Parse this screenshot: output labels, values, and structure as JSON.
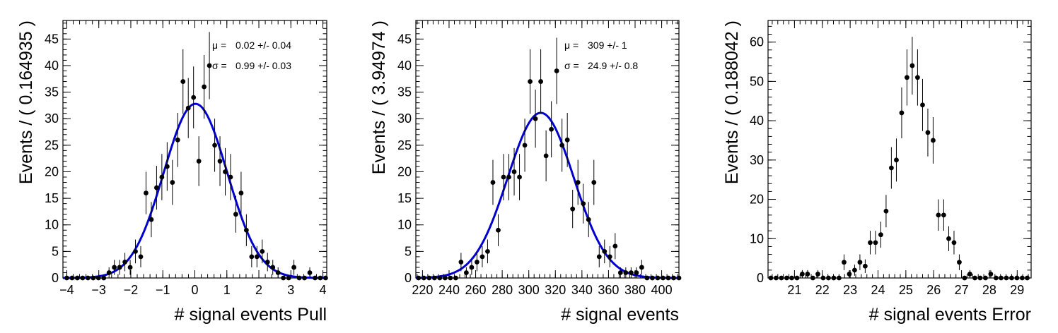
{
  "chart_data": [
    {
      "type": "scatter",
      "xlabel": "# signal events Pull",
      "ylabel": "Events / ( 0.164935 )",
      "xlim": [
        -4.12,
        4.12
      ],
      "ylim": [
        0,
        48.5
      ],
      "xticks": [
        -4,
        -3,
        -2,
        -1,
        0,
        1,
        2,
        3,
        4
      ],
      "xtick_labels": [
        "−4",
        "−3",
        "−2",
        "−1",
        "0",
        "1",
        "2",
        "3",
        "4"
      ],
      "yticks": [
        0,
        5,
        10,
        15,
        20,
        25,
        30,
        35,
        40,
        45
      ],
      "ytick_labels": [
        "0",
        "5",
        "10",
        "15",
        "20",
        "25",
        "30",
        "35",
        "40",
        "45"
      ],
      "stats": [
        {
          "symbol": "μ =",
          "text": "0.02 +/- 0.04"
        },
        {
          "symbol": "σ =",
          "text": "0.99 +/- 0.03"
        }
      ],
      "fit": {
        "type": "gaussian",
        "mean": 0.02,
        "sigma": 0.99,
        "amplitude": 32.8,
        "color": "#0000cc"
      },
      "points": {
        "x": [
          -4.0,
          -3.835,
          -3.67,
          -3.505,
          -3.34,
          -3.175,
          -3.01,
          -2.845,
          -2.68,
          -2.515,
          -2.35,
          -2.185,
          -2.02,
          -1.855,
          -1.69,
          -1.525,
          -1.36,
          -1.195,
          -1.03,
          -0.865,
          -0.7,
          -0.535,
          -0.37,
          -0.205,
          -0.04,
          0.125,
          0.29,
          0.455,
          0.62,
          0.785,
          0.95,
          1.115,
          1.28,
          1.445,
          1.61,
          1.775,
          1.94,
          2.105,
          2.27,
          2.435,
          2.6,
          2.765,
          2.93,
          3.095,
          3.26,
          3.425,
          3.59,
          3.755,
          3.92,
          4.085
        ],
        "y": [
          0,
          0,
          0,
          0,
          0,
          0,
          0,
          0,
          1,
          2,
          2,
          3,
          2,
          5,
          4,
          16,
          11,
          17,
          19,
          21,
          18,
          26,
          37,
          32,
          34,
          22,
          36,
          40,
          25,
          22,
          20,
          19,
          12,
          16,
          9,
          4,
          4,
          5,
          3,
          2,
          1,
          0,
          0,
          2,
          0,
          0,
          1,
          0,
          0,
          0
        ]
      }
    },
    {
      "type": "scatter",
      "xlabel": "# signal events",
      "ylabel": "Events / ( 3.94974 )",
      "xlim": [
        215,
        413
      ],
      "ylim": [
        0,
        48.5
      ],
      "xticks": [
        220,
        240,
        260,
        280,
        300,
        320,
        340,
        360,
        380,
        400
      ],
      "xtick_labels": [
        "220",
        "240",
        "260",
        "280",
        "300",
        "320",
        "340",
        "360",
        "380",
        "400"
      ],
      "yticks": [
        0,
        5,
        10,
        15,
        20,
        25,
        30,
        35,
        40,
        45
      ],
      "ytick_labels": [
        "0",
        "5",
        "10",
        "15",
        "20",
        "25",
        "30",
        "35",
        "40",
        "45"
      ],
      "stats": [
        {
          "symbol": "μ =",
          "text": "309 +/- 1"
        },
        {
          "symbol": "σ =",
          "text": "24.9 +/- 0.8"
        }
      ],
      "fit": {
        "type": "gaussian",
        "mean": 309,
        "sigma": 24.9,
        "amplitude": 31.1,
        "color": "#0000cc"
      },
      "points": {
        "x": [
          217,
          221,
          225,
          229,
          233,
          237,
          241,
          245,
          249,
          253,
          257,
          261,
          265,
          269,
          273,
          277,
          281,
          285,
          289,
          293,
          297,
          301,
          305,
          309,
          313,
          317,
          321,
          325,
          329,
          333,
          337,
          341,
          345,
          349,
          353,
          357,
          361,
          365,
          369,
          373,
          377,
          381,
          385,
          389,
          393,
          397,
          401,
          405,
          409,
          413
        ],
        "y": [
          0,
          0,
          0,
          0,
          0,
          0,
          0,
          0,
          3,
          1,
          2,
          3,
          4,
          5,
          18,
          9,
          19,
          19,
          20,
          19,
          25,
          37,
          30,
          37,
          23,
          28,
          39,
          25,
          26,
          13,
          18,
          14,
          11,
          18,
          4,
          5,
          4,
          6,
          1,
          1,
          1,
          1,
          2,
          0,
          0,
          0,
          0,
          0,
          0,
          0
        ]
      }
    },
    {
      "type": "scatter",
      "xlabel": "# signal events Error",
      "ylabel": "Events / ( 0.188042 )",
      "xlim": [
        20.05,
        29.5
      ],
      "ylim": [
        0,
        65.5
      ],
      "xticks": [
        21,
        22,
        23,
        24,
        25,
        26,
        27,
        28,
        29
      ],
      "xtick_labels": [
        "21",
        "22",
        "23",
        "24",
        "25",
        "26",
        "27",
        "28",
        "29"
      ],
      "yticks": [
        0,
        10,
        20,
        30,
        40,
        50,
        60
      ],
      "ytick_labels": [
        "0",
        "10",
        "20",
        "30",
        "40",
        "50",
        "60"
      ],
      "stats": [],
      "points": {
        "x": [
          20.15,
          20.34,
          20.53,
          20.72,
          20.9,
          21.09,
          21.28,
          21.47,
          21.66,
          21.84,
          22.03,
          22.22,
          22.41,
          22.6,
          22.78,
          22.97,
          23.16,
          23.35,
          23.54,
          23.72,
          23.91,
          24.1,
          24.29,
          24.48,
          24.66,
          24.85,
          25.04,
          25.23,
          25.42,
          25.6,
          25.79,
          25.98,
          26.17,
          26.36,
          26.54,
          26.73,
          26.92,
          27.11,
          27.3,
          27.48,
          27.67,
          27.86,
          28.05,
          28.24,
          28.42,
          28.61,
          28.8,
          28.99,
          29.18,
          29.36
        ],
        "y": [
          0,
          0,
          0,
          0,
          0,
          0,
          1,
          1,
          0,
          1,
          0,
          0,
          0,
          0,
          4,
          1,
          2,
          4,
          3,
          9,
          9,
          11,
          17,
          28,
          30,
          42,
          51,
          54,
          51,
          44,
          37,
          35,
          16,
          16,
          10,
          9,
          4,
          0,
          1,
          0,
          0,
          0,
          1,
          0,
          0,
          0,
          0,
          0,
          0,
          0
        ]
      }
    }
  ]
}
